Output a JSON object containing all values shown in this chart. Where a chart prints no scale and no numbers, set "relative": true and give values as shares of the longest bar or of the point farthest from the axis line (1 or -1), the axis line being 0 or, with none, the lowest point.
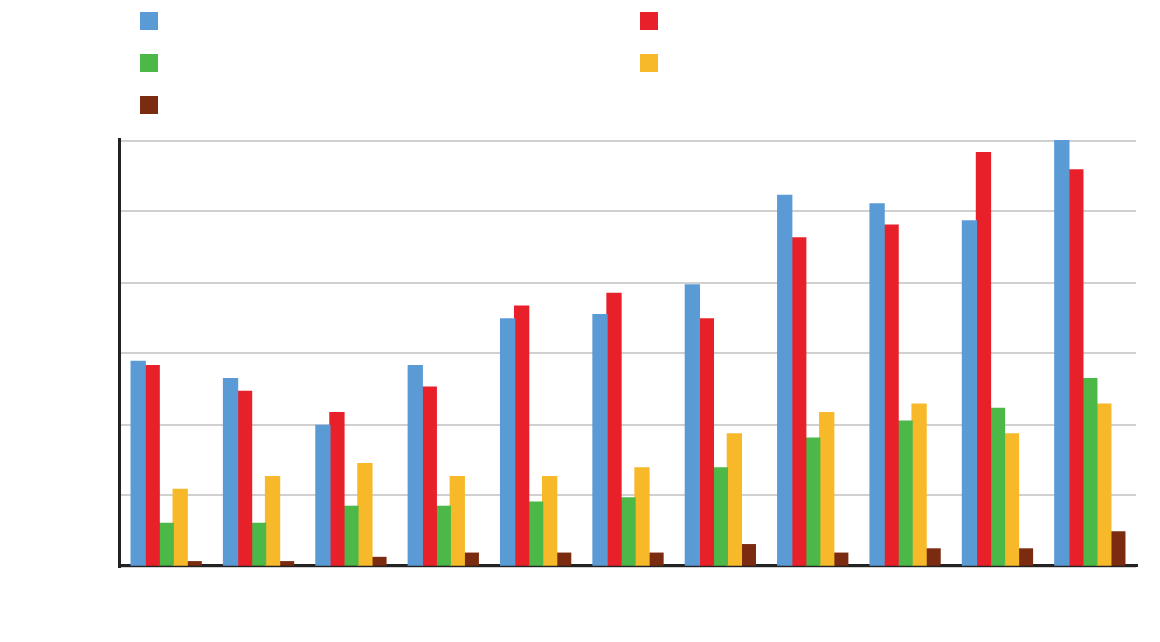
{
  "chart_data": {
    "type": "bar",
    "relative": true,
    "grid": "y",
    "categories": [
      null,
      null,
      null,
      null,
      null,
      null,
      null,
      null,
      null,
      null,
      null
    ],
    "series": [
      {
        "color": "#5b9bd5",
        "values": [
          0.48,
          0.44,
          0.33,
          0.47,
          0.58,
          0.59,
          0.66,
          0.87,
          0.85,
          0.81,
          1
        ]
      },
      {
        "color": "#e8202a",
        "values": [
          0.47,
          0.41,
          0.36,
          0.42,
          0.61,
          0.64,
          0.58,
          0.77,
          0.8,
          0.97,
          0.93
        ]
      },
      {
        "color": "#4cb848",
        "values": [
          0.1,
          0.1,
          0.14,
          0.14,
          0.15,
          0.16,
          0.23,
          0.3,
          0.34,
          0.37,
          0.44
        ]
      },
      {
        "color": "#f7b92a",
        "values": [
          0.18,
          0.21,
          0.24,
          0.21,
          0.21,
          0.23,
          0.31,
          0.36,
          0.38,
          0.31,
          0.38
        ]
      },
      {
        "color": "#7b2c10",
        "values": [
          0.01,
          0.01,
          0.02,
          0.03,
          0.03,
          0.03,
          0.05,
          0.03,
          0.04,
          0.04,
          0.08
        ]
      }
    ]
  }
}
